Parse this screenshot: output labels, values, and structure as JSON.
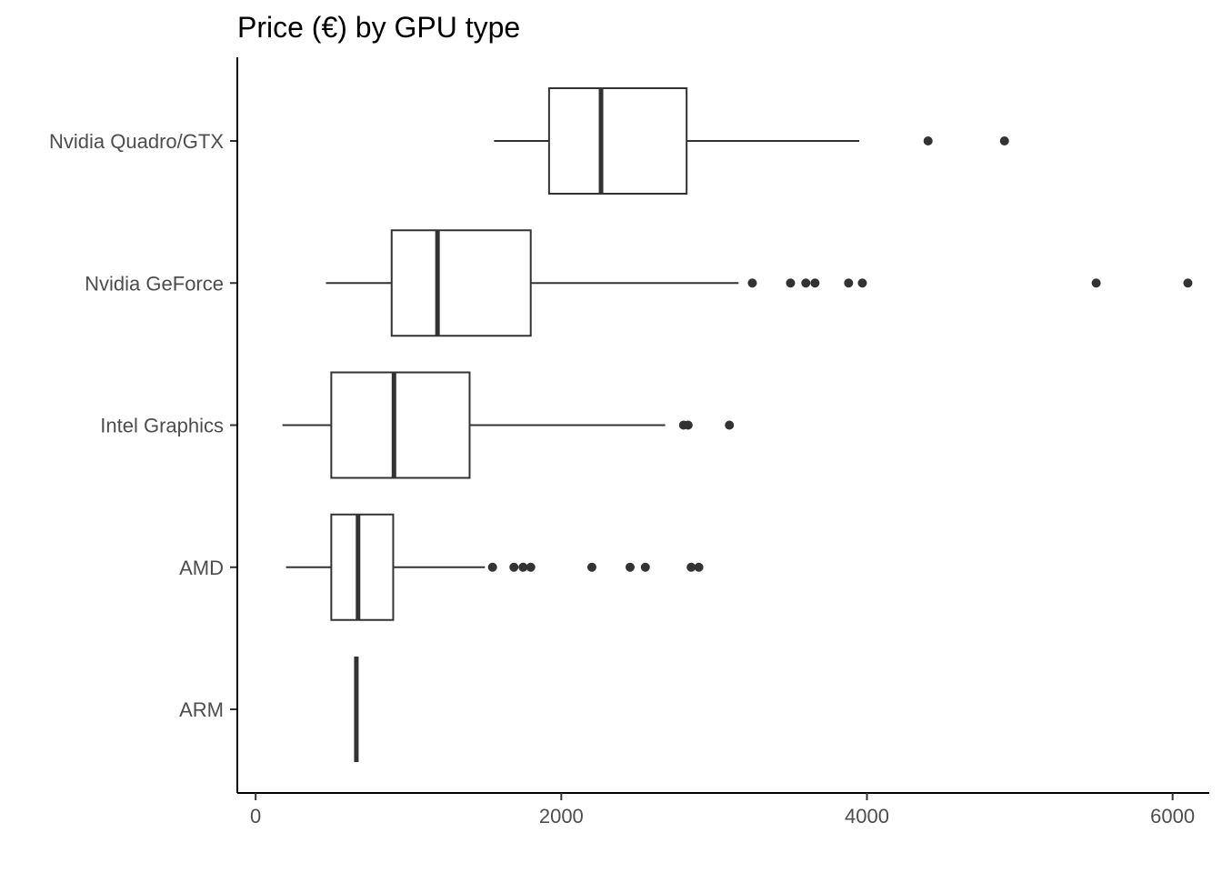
{
  "chart_data": {
    "type": "boxplot",
    "title": "Price (€) by GPU type",
    "xlabel": "",
    "ylabel": "",
    "orientation": "horizontal",
    "xlim": [
      -120,
      6240
    ],
    "x_ticks": [
      0,
      2000,
      4000,
      6000
    ],
    "x_tick_labels": [
      "0",
      "2000",
      "4000",
      "6000"
    ],
    "grid": false,
    "categories": [
      "Nvidia Quadro/GTX",
      "Nvidia GeForce",
      "Intel Graphics",
      "AMD",
      "ARM"
    ],
    "boxes": [
      {
        "category": "Nvidia Quadro/GTX",
        "whisker_low": 1560,
        "q1": 1920,
        "median": 2260,
        "q3": 2820,
        "whisker_high": 3950,
        "outliers": [
          4400,
          4900
        ]
      },
      {
        "category": "Nvidia GeForce",
        "whisker_low": 460,
        "q1": 890,
        "median": 1190,
        "q3": 1800,
        "whisker_high": 3160,
        "outliers": [
          3250,
          3500,
          3600,
          3660,
          3880,
          3970,
          5500,
          6100
        ]
      },
      {
        "category": "Intel Graphics",
        "whisker_low": 175,
        "q1": 495,
        "median": 905,
        "q3": 1400,
        "whisker_high": 2680,
        "outliers": [
          2800,
          2830,
          3100
        ]
      },
      {
        "category": "AMD",
        "whisker_low": 199,
        "q1": 495,
        "median": 670,
        "q3": 900,
        "whisker_high": 1500,
        "outliers": [
          1550,
          1690,
          1750,
          1800,
          2200,
          2450,
          2550,
          2850,
          2900
        ]
      },
      {
        "category": "ARM",
        "whisker_low": 659,
        "q1": 659,
        "median": 659,
        "q3": 659,
        "whisker_high": 659,
        "outliers": []
      }
    ]
  }
}
